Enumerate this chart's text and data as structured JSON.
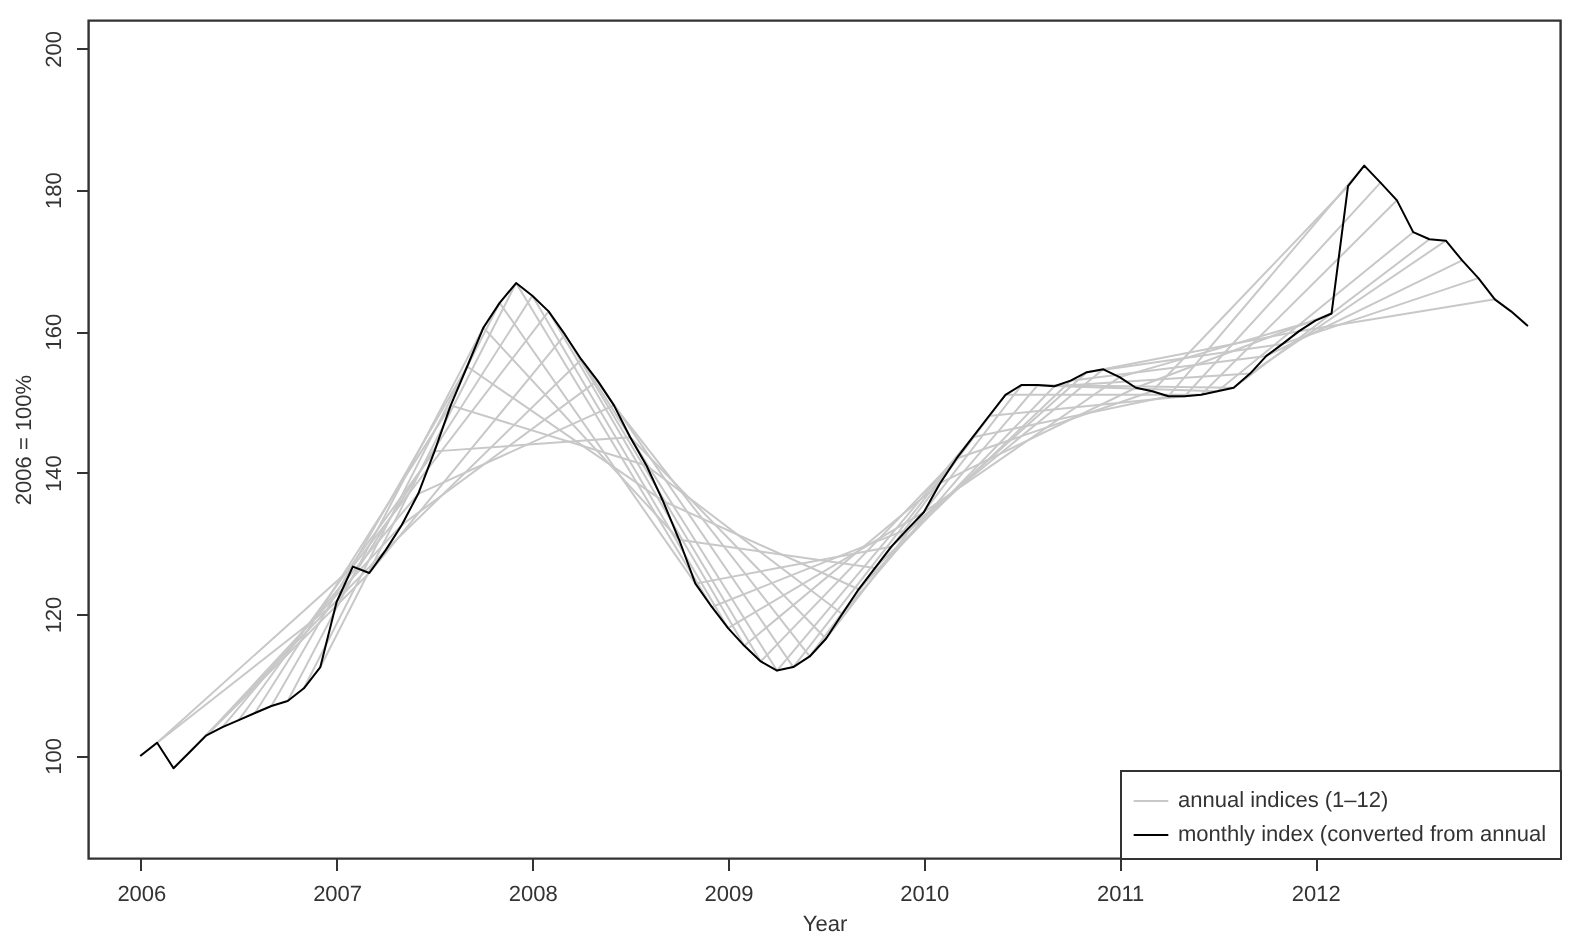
{
  "chart_data": {
    "type": "line",
    "xlabel": "Year",
    "ylabel": "2006 = 100%",
    "xlim": [
      2005.73,
      2013.25
    ],
    "xticks": [
      2006,
      2007,
      2008,
      2009,
      2010,
      2011,
      2012
    ],
    "ylim": [
      85.5,
      204
    ],
    "yticks": [
      100,
      120,
      140,
      160,
      180,
      200
    ],
    "grid": false,
    "legend": "bottom right",
    "series": [
      {
        "name": "annual indices (1–12)",
        "color": "#c8c8c8",
        "x": [
          2006,
          2007,
          2008,
          2009,
          2010,
          2011,
          2012
        ],
        "values": [
          100,
          121.7,
          165,
          118,
          134.4,
          153.5,
          161.5
        ]
      },
      {
        "color": "#c8c8c8",
        "x": [
          2006.083,
          2007.083,
          2008.083,
          2009.083,
          2010.083,
          2011.083,
          2012.083
        ],
        "values": [
          101.8,
          126.7,
          162.8,
          115.5,
          138.5,
          152,
          162.5
        ]
      },
      {
        "color": "#c8c8c8",
        "x": [
          2006.167,
          2007.167,
          2008.167,
          2009.167,
          2010.167,
          2011.167,
          2012.167
        ],
        "values": [
          98.2,
          125.8,
          159.5,
          113.3,
          142,
          151.5,
          180.5
        ]
      },
      {
        "color": "#c8c8c8",
        "x": [
          2006.25,
          2007.25,
          2008.25,
          2009.25,
          2010.25,
          2011.25,
          2012.25
        ],
        "values": [
          100.5,
          129,
          156,
          112,
          145,
          150.8,
          183.4
        ]
      },
      {
        "color": "#c8c8c8",
        "x": [
          2006.333,
          2007.333,
          2008.333,
          2009.333,
          2010.333,
          2011.333,
          2012.333
        ],
        "values": [
          102.8,
          132.6,
          153,
          112.5,
          148,
          150.8,
          181
        ]
      },
      {
        "color": "#c8c8c8",
        "x": [
          2006.417,
          2007.417,
          2008.417,
          2009.417,
          2010.417,
          2011.417,
          2012.417
        ],
        "values": [
          104,
          137,
          149.5,
          114,
          151,
          151,
          178.5
        ]
      },
      {
        "color": "#c8c8c8",
        "x": [
          2006.5,
          2007.5,
          2008.5,
          2009.5,
          2010.5,
          2011.5,
          2012.5
        ],
        "values": [
          105,
          143,
          145,
          116.5,
          152.4,
          151.5,
          174
        ]
      },
      {
        "color": "#c8c8c8",
        "x": [
          2006.583,
          2007.583,
          2008.583,
          2009.583,
          2010.583,
          2011.583,
          2012.583
        ],
        "values": [
          106,
          149.5,
          141,
          120,
          152.4,
          152,
          173
        ]
      },
      {
        "color": "#c8c8c8",
        "x": [
          2006.667,
          2007.667,
          2008.667,
          2009.667,
          2010.667,
          2011.667,
          2012.667
        ],
        "values": [
          107,
          155,
          136,
          123.5,
          152.2,
          154,
          172.8
        ]
      },
      {
        "color": "#c8c8c8",
        "x": [
          2006.75,
          2007.75,
          2008.75,
          2009.75,
          2010.75,
          2011.75,
          2012.75
        ],
        "values": [
          107.7,
          160.5,
          130.5,
          126.5,
          153,
          156.5,
          170
        ]
      },
      {
        "color": "#c8c8c8",
        "x": [
          2006.833,
          2007.833,
          2008.833,
          2009.833,
          2010.833,
          2011.833,
          2012.833
        ],
        "values": [
          109.5,
          164,
          124.3,
          129.5,
          154.2,
          158.2,
          167.5
        ]
      },
      {
        "color": "#c8c8c8",
        "x": [
          2006.917,
          2007.917,
          2008.917,
          2009.917,
          2010.917,
          2011.917,
          2012.917
        ],
        "values": [
          112.5,
          166.8,
          121,
          132,
          154.6,
          160,
          164.5
        ]
      },
      {
        "name": "monthly index (converted from annual",
        "color": "#000000",
        "x": [
          2006,
          2006.083,
          2006.167,
          2006.25,
          2006.333,
          2006.417,
          2006.5,
          2006.583,
          2006.667,
          2006.75,
          2006.833,
          2006.917,
          2007,
          2007.083,
          2007.167,
          2007.25,
          2007.333,
          2007.417,
          2007.5,
          2007.583,
          2007.667,
          2007.75,
          2007.833,
          2007.917,
          2008,
          2008.083,
          2008.167,
          2008.25,
          2008.333,
          2008.417,
          2008.5,
          2008.583,
          2008.667,
          2008.75,
          2008.833,
          2008.917,
          2009,
          2009.083,
          2009.167,
          2009.25,
          2009.333,
          2009.417,
          2009.5,
          2009.583,
          2009.667,
          2009.75,
          2009.833,
          2009.917,
          2010,
          2010.083,
          2010.167,
          2010.25,
          2010.333,
          2010.417,
          2010.5,
          2010.583,
          2010.667,
          2010.75,
          2010.833,
          2010.917,
          2011,
          2011.083,
          2011.167,
          2011.25,
          2011.333,
          2011.417,
          2011.5,
          2011.583,
          2011.667,
          2011.75,
          2011.833,
          2011.917,
          2012,
          2012.083,
          2012.167,
          2012.25,
          2012.333,
          2012.417,
          2012.5,
          2012.583,
          2012.667,
          2012.75,
          2012.833,
          2012.917,
          2013,
          2013.083
        ],
        "values": [
          100,
          101.8,
          98.2,
          100.5,
          102.8,
          104,
          105,
          106,
          107,
          107.7,
          109.5,
          112.5,
          121.7,
          126.7,
          125.8,
          129,
          132.6,
          137,
          143,
          149.5,
          155,
          160.5,
          164,
          166.8,
          165,
          162.8,
          159.5,
          156,
          153,
          149.5,
          145,
          141,
          136,
          130.5,
          124.3,
          121,
          118,
          115.5,
          113.3,
          112,
          112.5,
          114,
          116.5,
          120,
          123.5,
          126.5,
          129.5,
          132,
          134.4,
          138.5,
          142,
          145,
          148,
          151,
          152.4,
          152.4,
          152.2,
          153,
          154.2,
          154.6,
          153.5,
          152,
          151.5,
          150.8,
          150.8,
          151,
          151.5,
          152,
          154,
          156.5,
          158.2,
          160,
          161.5,
          162.5,
          180.5,
          183.4,
          181,
          178.5,
          174,
          173,
          172.8,
          170,
          167.5,
          164.5,
          162.8,
          160.8
        ]
      }
    ]
  }
}
